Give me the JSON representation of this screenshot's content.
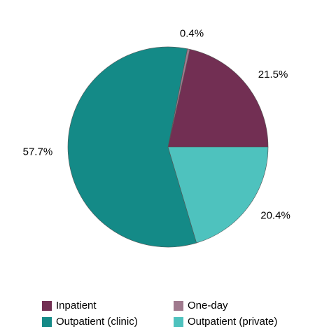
{
  "chart_data": {
    "type": "pie",
    "categories": [
      "Inpatient",
      "One-day",
      "Outpatient (clinic)",
      "Outpatient (private)"
    ],
    "values": [
      21.5,
      0.4,
      57.7,
      20.4
    ],
    "value_labels": [
      "21.5%",
      "0.4%",
      "57.7%",
      "20.4%"
    ],
    "colors": [
      "#722f53",
      "#a07a8e",
      "#148a87",
      "#4ec2be"
    ]
  }
}
